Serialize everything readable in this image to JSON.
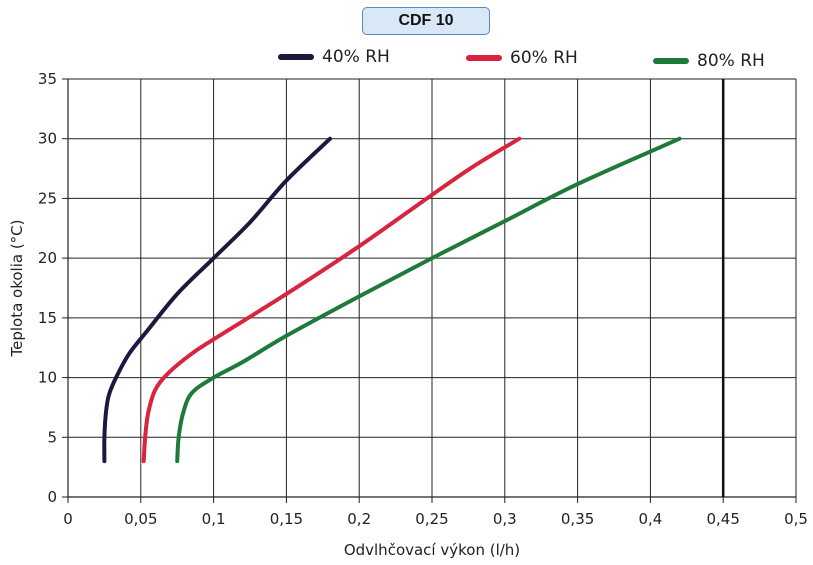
{
  "chart_data": {
    "type": "line",
    "title": "CDF 10",
    "xlabel": "Odvlhčovací výkon (l/h)",
    "ylabel": "Teplota okolia (°C)",
    "xlim": [
      0,
      0.5
    ],
    "ylim": [
      0,
      35
    ],
    "x_ticks": [
      "0",
      "0,05",
      "0,1",
      "0,15",
      "0,2",
      "0,25",
      "0,3",
      "0,35",
      "0,4",
      "0,45",
      "0,5"
    ],
    "y_ticks": [
      "0",
      "5",
      "10",
      "15",
      "20",
      "25",
      "30",
      "35"
    ],
    "grid": true,
    "legend_position": "top",
    "reference_line_x": 0.45,
    "series": [
      {
        "name": "40% RH",
        "color": "#1a1a40",
        "points": [
          [
            0.025,
            3
          ],
          [
            0.025,
            5
          ],
          [
            0.026,
            7
          ],
          [
            0.028,
            8.5
          ],
          [
            0.033,
            10
          ],
          [
            0.042,
            12
          ],
          [
            0.055,
            14
          ],
          [
            0.075,
            17
          ],
          [
            0.1,
            20
          ],
          [
            0.125,
            23
          ],
          [
            0.15,
            26.5
          ],
          [
            0.18,
            30
          ]
        ]
      },
      {
        "name": "60% RH",
        "color": "#d8243c",
        "points": [
          [
            0.052,
            3
          ],
          [
            0.053,
            5
          ],
          [
            0.055,
            7
          ],
          [
            0.06,
            9
          ],
          [
            0.07,
            10.5
          ],
          [
            0.085,
            12
          ],
          [
            0.1,
            13.2
          ],
          [
            0.15,
            17
          ],
          [
            0.2,
            21
          ],
          [
            0.25,
            25.3
          ],
          [
            0.28,
            27.8
          ],
          [
            0.31,
            30
          ]
        ]
      },
      {
        "name": "80% RH",
        "color": "#1e7a3a",
        "points": [
          [
            0.075,
            3
          ],
          [
            0.076,
            5
          ],
          [
            0.079,
            7
          ],
          [
            0.085,
            8.7
          ],
          [
            0.1,
            10
          ],
          [
            0.12,
            11.3
          ],
          [
            0.15,
            13.5
          ],
          [
            0.2,
            16.8
          ],
          [
            0.25,
            20
          ],
          [
            0.3,
            23.1
          ],
          [
            0.35,
            26.2
          ],
          [
            0.42,
            30
          ]
        ]
      }
    ]
  }
}
